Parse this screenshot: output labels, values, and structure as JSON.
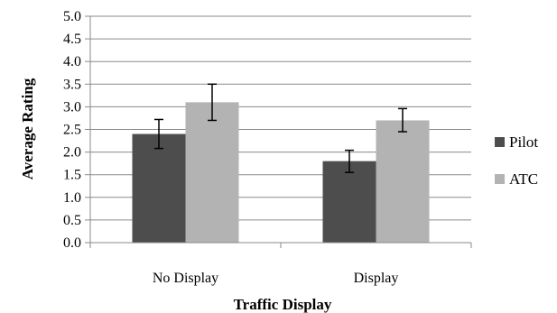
{
  "chart_data": {
    "type": "bar",
    "xlabel": "Traffic Display",
    "ylabel": "Average Rating",
    "ylim": [
      0,
      5
    ],
    "y_ticks": [
      "0.0",
      "0.5",
      "1.0",
      "1.5",
      "2.0",
      "2.5",
      "3.0",
      "3.5",
      "4.0",
      "4.5",
      "5.0"
    ],
    "categories": [
      "No Display",
      "Display"
    ],
    "series": [
      {
        "name": "Pilot",
        "values": [
          2.4,
          1.8
        ],
        "error_low": [
          2.08,
          1.55
        ],
        "error_high": [
          2.72,
          2.04
        ],
        "color": "#4d4d4d"
      },
      {
        "name": "ATC",
        "values": [
          3.1,
          2.7
        ],
        "error_low": [
          2.7,
          2.45
        ],
        "error_high": [
          3.5,
          2.96
        ],
        "color": "#b3b3b3"
      }
    ],
    "grid": true,
    "legend_position": "right"
  }
}
